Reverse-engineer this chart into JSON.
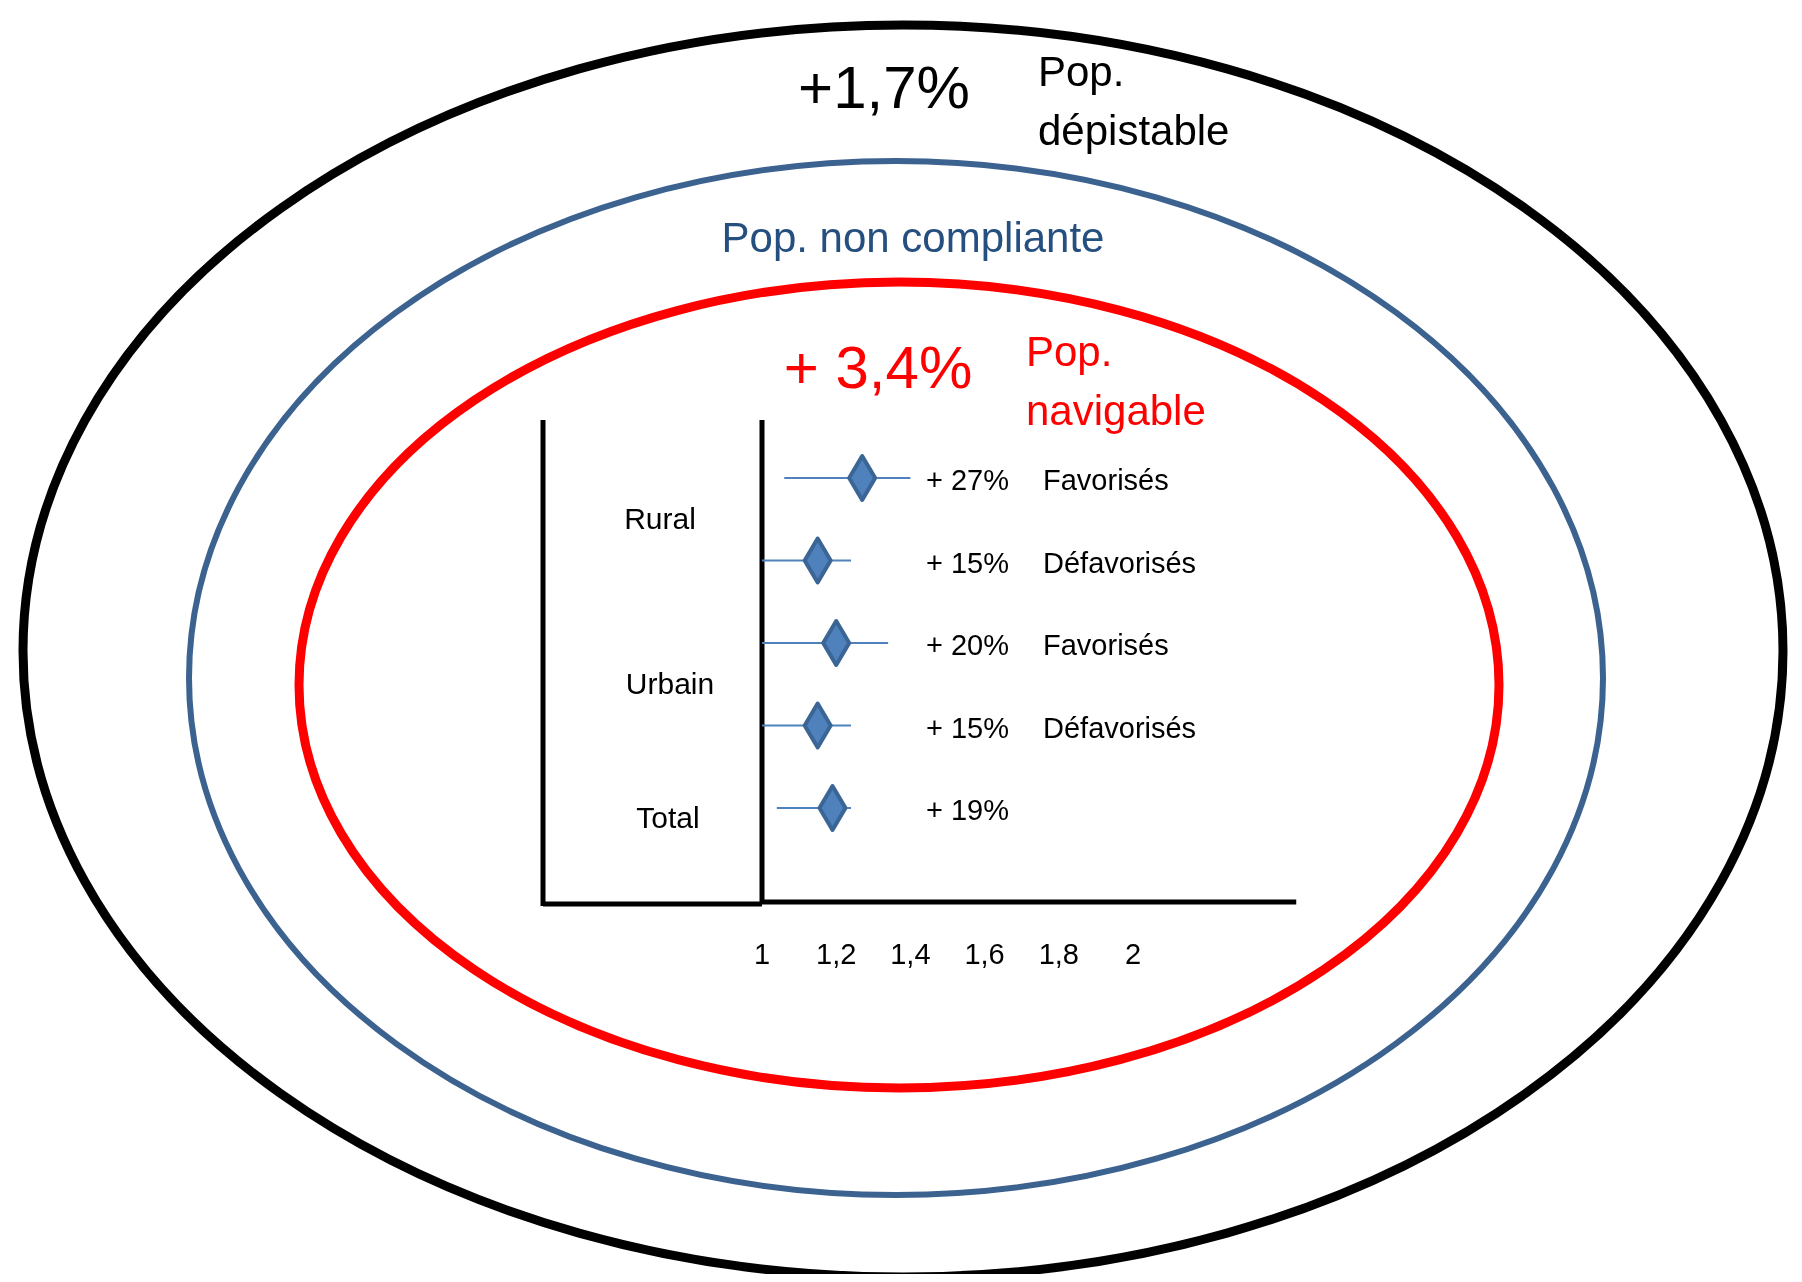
{
  "chart_data": {
    "type": "scatter",
    "orientation": "horizontal",
    "categories": [
      "Favorisés",
      "Défavorisés",
      "Favorisés",
      "Défavorisés",
      null
    ],
    "values": [
      1.27,
      1.15,
      1.2,
      1.15,
      1.19
    ],
    "errors": [
      [
        1.06,
        1.4
      ],
      [
        1.0,
        1.24
      ],
      [
        1.0,
        1.34
      ],
      [
        1.0,
        1.24
      ],
      [
        1.04,
        1.24
      ]
    ],
    "color": "#4f81bd",
    "marker": "diamond",
    "xlim": [
      1,
      2.44
    ],
    "xticks": [
      {
        "value": 1,
        "label": "1"
      },
      {
        "value": 1.2,
        "label": "1,2"
      },
      {
        "value": 1.4,
        "label": "1,4"
      },
      {
        "value": 1.6,
        "label": "1,6"
      },
      {
        "value": 1.8,
        "label": "1,8"
      },
      {
        "value": 2,
        "label": "2"
      }
    ],
    "annotations": [
      "+1,7%",
      "Pop. dépistable",
      "Pop. non compliante",
      "+ 3,4%",
      "Pop. navigable",
      "Rural",
      "Urbain",
      "Total",
      "+ 27%",
      "+ 15%",
      "+ 20%",
      "+ 15%",
      "+ 19%"
    ]
  }
}
